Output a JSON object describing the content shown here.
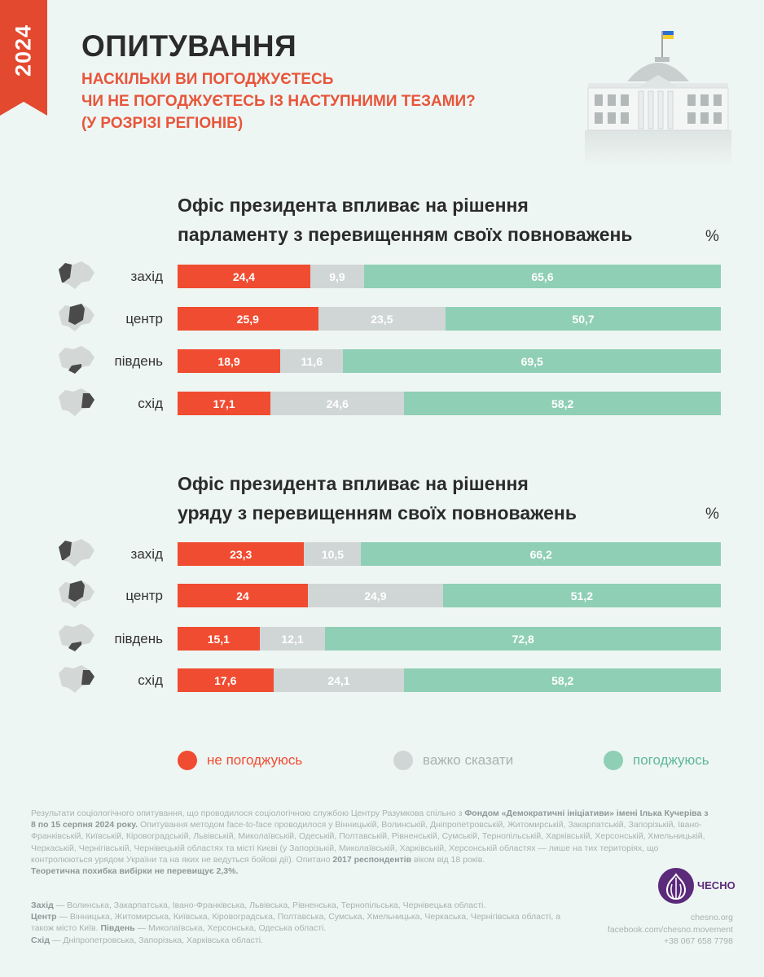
{
  "header": {
    "year": "2024",
    "title": "ОПИТУВАННЯ",
    "subtitle_lines": [
      "НАСКІЛЬКИ ВИ ПОГОДЖУЄТЕСЬ",
      "ЧИ НЕ ПОГОДЖУЄТЕСЬ ІЗ НАСТУПНИМИ ТЕЗАМИ?",
      "(У РОЗРІЗІ РЕГІОНІВ)"
    ]
  },
  "colors": {
    "accent": "#e2492f",
    "disagree": "#f04c31",
    "hard_to_say": "#d0d6d5",
    "agree": "#8fcfb6",
    "logo": "#5c2a7a"
  },
  "chart_data": [
    {
      "type": "bar",
      "stacked": true,
      "orientation": "horizontal",
      "title_lines": [
        "Офіс президента впливає на рішення",
        "парламенту з перевищенням своїх повноважень"
      ],
      "unit": "%",
      "categories": [
        "захід",
        "центр",
        "південь",
        "схід"
      ],
      "series": [
        {
          "name": "не погоджуюсь",
          "values": [
            24.4,
            25.9,
            18.9,
            17.1
          ]
        },
        {
          "name": "важко сказати",
          "values": [
            9.9,
            23.5,
            11.6,
            24.6
          ]
        },
        {
          "name": "погоджуюсь",
          "values": [
            65.6,
            50.7,
            69.5,
            58.2
          ]
        }
      ],
      "value_labels": [
        [
          "24,4",
          "25,9",
          "18,9",
          "17,1"
        ],
        [
          "9,9",
          "23,5",
          "11,6",
          "24,6"
        ],
        [
          "65,6",
          "50,7",
          "69,5",
          "58,2"
        ]
      ]
    },
    {
      "type": "bar",
      "stacked": true,
      "orientation": "horizontal",
      "title_lines": [
        "Офіс президента впливає на рішення",
        "уряду з перевищенням своїх повноважень"
      ],
      "unit": "%",
      "categories": [
        "захід",
        "центр",
        "південь",
        "схід"
      ],
      "series": [
        {
          "name": "не погоджуюсь",
          "values": [
            23.3,
            24,
            15.1,
            17.6
          ]
        },
        {
          "name": "важко сказати",
          "values": [
            10.5,
            24.9,
            12.1,
            24.1
          ]
        },
        {
          "name": "погоджуюсь",
          "values": [
            66.2,
            51.2,
            72.8,
            58.2
          ]
        }
      ],
      "value_labels": [
        [
          "23,3",
          "24",
          "15,1",
          "17,6"
        ],
        [
          "10,5",
          "24,9",
          "12,1",
          "24,1"
        ],
        [
          "66,2",
          "51,2",
          "72,8",
          "58,2"
        ]
      ]
    }
  ],
  "legend": [
    "не погоджуюсь",
    "важко сказати",
    "погоджуюсь"
  ],
  "footnote": {
    "p1": "Результати соціологічного опитування, що проводилося соціологічною службою Центру Разумкова спільно з ",
    "b1": "Фондом «Демократичні ініціативи» імені Ілька Кучеріва з 8 по 15 серпня 2024 року.",
    "p2": " Опитування методом face-to-face проводилося у Вінницькій, Волинській, Дніпропетровській, Житомирській, Закарпатській, Запорізькій, Івано-Франківській, Київській, Кіровоградській, Львівській, Миколаївській, Одеській, Полтавській, Рівненській, Сумській, Тернопільській, Харківській, Херсонській, Хмельницькій, Черкаській, Чернігівській, Чернівецькій областях та місті Києві (у Запорізькій, Миколаївській, Харківській, Херсонській областях — лише на тих територіях, що контролюються урядом України та на яких не ведуться бойові дії). Опитано ",
    "b2": "2017 респондентів",
    "p3": " віком від 18 років.",
    "b3": "Теоретична похибка вибірки не перевищує 2,3%."
  },
  "regions_note": {
    "west_label": "Захід",
    "west_text": " — Волинська, Закарпатська, Івано-Франківська, Львівська, Рівненська, Тернопільська, Чернівецька області.",
    "center_label": "Центр",
    "center_text": " — Вінницька, Житомирська, Київська, Кіровоградська, Полтавська, Сумська, Хмельницька, Черкаська, Чернігівська області, а також місто Київ. ",
    "south_label": "Південь",
    "south_text": " — Миколаївська, Херсонська, Одеська області.",
    "east_label": "Схід",
    "east_text": " — Дніпропетровська, Запорізька, Харківська області."
  },
  "logo": {
    "name": "ЧЕСНО"
  },
  "contacts": [
    "chesno.org",
    "facebook.com/chesno.movement",
    "+38 067 658 7798"
  ]
}
